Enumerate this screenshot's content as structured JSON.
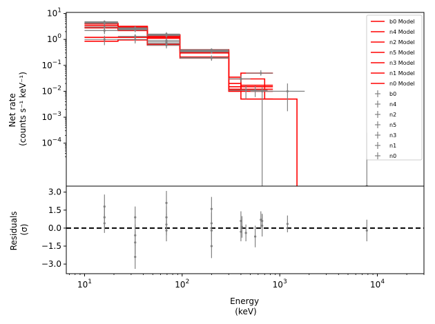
{
  "chart_data": [
    {
      "type": "line",
      "panel": "top",
      "ylabel_lines": [
        "Net rate",
        "(counts s⁻¹ keV⁻¹)"
      ],
      "yscale": "log",
      "xscale": "log",
      "xlim": [
        6.5,
        30000
      ],
      "ylim": [
        2.2e-06,
        11
      ],
      "y_ticks": [
        {
          "value": 0.0001,
          "mant": "10",
          "exp": "−4"
        },
        {
          "value": 0.001,
          "mant": "10",
          "exp": "−3"
        },
        {
          "value": 0.01,
          "mant": "10",
          "exp": "−2"
        },
        {
          "value": 0.1,
          "mant": "10",
          "exp": "−1"
        },
        {
          "value": 1,
          "mant": "10",
          "exp": "0"
        },
        {
          "value": 10,
          "mant": "10",
          "exp": "1"
        }
      ],
      "models": [
        {
          "name": "b0 Model",
          "edges": [
            10,
            22,
            44,
            95,
            300,
            700,
            1500,
            20000
          ],
          "values": [
            4.2,
            3.2,
            1.5,
            0.4,
            0.03,
            0.005,
            2e-06
          ]
        },
        {
          "name": "n4 Model",
          "edges": [
            10,
            22,
            44,
            95,
            300,
            400,
            850
          ],
          "values": [
            3.0,
            2.2,
            1.1,
            0.32,
            0.012,
            0.017
          ]
        },
        {
          "name": "n2 Model",
          "edges": [
            10,
            22,
            44,
            95,
            300,
            400,
            850
          ],
          "values": [
            3.5,
            2.7,
            1.2,
            0.36,
            0.015,
            0.012
          ]
        },
        {
          "name": "n5 Model",
          "edges": [
            10,
            22,
            44,
            95,
            300,
            400,
            850
          ],
          "values": [
            1.2,
            1.2,
            0.65,
            0.21,
            0.011,
            0.05
          ]
        },
        {
          "name": "n3 Model",
          "edges": [
            10,
            22,
            44,
            95,
            300,
            400,
            850
          ],
          "values": [
            2.8,
            2.4,
            1.3,
            0.3,
            0.02,
            0.015
          ]
        },
        {
          "name": "n1 Model",
          "edges": [
            10,
            22,
            44,
            95,
            300,
            400,
            850
          ],
          "values": [
            0.85,
            0.95,
            0.6,
            0.19,
            0.01,
            0.005
          ]
        },
        {
          "name": "n0 Model",
          "edges": [
            10,
            22,
            44,
            95,
            300,
            400,
            850
          ],
          "values": [
            4.0,
            3.0,
            1.4,
            0.38,
            0.035,
            0.01
          ]
        }
      ],
      "data_series": [
        {
          "name": "b0",
          "points": [
            {
              "x": 16,
              "xerr": [
                10,
                22
              ],
              "y": 4.8,
              "yerr": [
                4.3,
                5.4
              ]
            },
            {
              "x": 33,
              "xerr": [
                22,
                44
              ],
              "y": 2.6,
              "yerr": [
                2.2,
                3.1
              ]
            },
            {
              "x": 69,
              "xerr": [
                44,
                95
              ],
              "y": 0.9,
              "yerr": [
                0.7,
                1.1
              ]
            },
            {
              "x": 200,
              "xerr": [
                95,
                300
              ],
              "y": 0.38,
              "yerr": [
                0.33,
                0.43
              ]
            },
            {
              "x": 1200,
              "xerr": [
                800,
                1800
              ],
              "y": 0.01,
              "yerr": [
                0.0017,
                0.02
              ]
            },
            {
              "x": 7800,
              "xerr": [
                7500,
                8100
              ],
              "y": 2.2e-06,
              "yerr": [
                2.2e-06,
                0.00025
              ]
            }
          ]
        },
        {
          "name": "n4",
          "points": [
            {
              "x": 16,
              "xerr": [
                10,
                22
              ],
              "y": 2.2,
              "yerr": [
                1.8,
                2.6
              ]
            },
            {
              "x": 33,
              "xerr": [
                22,
                44
              ],
              "y": 2.3,
              "yerr": [
                1.9,
                2.7
              ]
            },
            {
              "x": 69,
              "xerr": [
                44,
                95
              ],
              "y": 1.6,
              "yerr": [
                1.3,
                1.9
              ]
            },
            {
              "x": 200,
              "xerr": [
                95,
                300
              ],
              "y": 0.36,
              "yerr": [
                0.31,
                0.41
              ]
            },
            {
              "x": 450,
              "xerr": [
                300,
                600
              ],
              "y": 0.011,
              "yerr": [
                0.005,
                0.017
              ]
            }
          ]
        },
        {
          "name": "n2",
          "points": [
            {
              "x": 16,
              "xerr": [
                10,
                22
              ],
              "y": 4.5,
              "yerr": [
                3.9,
                5.1
              ]
            },
            {
              "x": 33,
              "xerr": [
                22,
                44
              ],
              "y": 1.3,
              "yerr": [
                0.8,
                1.6
              ]
            },
            {
              "x": 69,
              "xerr": [
                44,
                95
              ],
              "y": 0.7,
              "yerr": [
                0.5,
                0.9
              ]
            },
            {
              "x": 200,
              "xerr": [
                95,
                300
              ],
              "y": 0.2,
              "yerr": [
                0.16,
                0.24
              ]
            },
            {
              "x": 560,
              "xerr": [
                400,
                750
              ],
              "y": 0.011,
              "yerr": [
                0.006,
                0.016
              ]
            }
          ]
        },
        {
          "name": "n5",
          "points": [
            {
              "x": 16,
              "xerr": [
                10,
                22
              ],
              "y": 1.0,
              "yerr": [
                0.6,
                1.4
              ]
            },
            {
              "x": 33,
              "xerr": [
                22,
                44
              ],
              "y": 1.0,
              "yerr": [
                0.7,
                1.3
              ]
            },
            {
              "x": 69,
              "xerr": [
                44,
                95
              ],
              "y": 0.6,
              "yerr": [
                0.45,
                0.75
              ]
            },
            {
              "x": 200,
              "xerr": [
                95,
                300
              ],
              "y": 0.19,
              "yerr": [
                0.15,
                0.23
              ]
            },
            {
              "x": 640,
              "xerr": [
                450,
                850
              ],
              "y": 0.05,
              "yerr": [
                0.04,
                0.065
              ]
            }
          ]
        },
        {
          "name": "n3",
          "points": [
            {
              "x": 16,
              "xerr": [
                10,
                22
              ],
              "y": 3.0,
              "yerr": [
                2.5,
                3.5
              ]
            },
            {
              "x": 33,
              "xerr": [
                22,
                44
              ],
              "y": 2.8,
              "yerr": [
                2.4,
                3.2
              ]
            },
            {
              "x": 69,
              "xerr": [
                44,
                95
              ],
              "y": 1.4,
              "yerr": [
                1.15,
                1.65
              ]
            },
            {
              "x": 200,
              "xerr": [
                95,
                300
              ],
              "y": 0.33,
              "yerr": [
                0.29,
                0.37
              ]
            },
            {
              "x": 400,
              "xerr": [
                300,
                500
              ],
              "y": 0.03,
              "yerr": [
                0.022,
                0.04
              ]
            }
          ]
        },
        {
          "name": "n1",
          "points": [
            {
              "x": 16,
              "xerr": [
                10,
                22
              ],
              "y": 2.2,
              "yerr": [
                1.6,
                2.8
              ]
            },
            {
              "x": 33,
              "xerr": [
                22,
                44
              ],
              "y": 2.4,
              "yerr": [
                2.0,
                2.8
              ]
            },
            {
              "x": 69,
              "xerr": [
                44,
                95
              ],
              "y": 0.8,
              "yerr": [
                0.6,
                1.0
              ]
            },
            {
              "x": 200,
              "xerr": [
                95,
                300
              ],
              "y": 0.4,
              "yerr": [
                0.35,
                0.45
              ]
            },
            {
              "x": 660,
              "xerr": [
                500,
                850
              ],
              "y": 0.01,
              "yerr": [
                2.2e-06,
                0.014
              ]
            }
          ]
        },
        {
          "name": "n0",
          "points": [
            {
              "x": 16,
              "xerr": [
                10,
                22
              ],
              "y": 4.2,
              "yerr": [
                3.6,
                4.8
              ]
            },
            {
              "x": 33,
              "xerr": [
                22,
                44
              ],
              "y": 2.6,
              "yerr": [
                2.2,
                3.0
              ]
            },
            {
              "x": 69,
              "xerr": [
                44,
                95
              ],
              "y": 1.5,
              "yerr": [
                1.25,
                1.75
              ]
            },
            {
              "x": 200,
              "xerr": [
                95,
                300
              ],
              "y": 0.35,
              "yerr": [
                0.3,
                0.4
              ]
            },
            {
              "x": 400,
              "xerr": [
                300,
                500
              ],
              "y": 0.03,
              "yerr": [
                0.024,
                0.036
              ]
            }
          ]
        }
      ],
      "legend_placement": "top-right",
      "model_color": "#ff0000",
      "data_color": "#808080"
    },
    {
      "type": "scatter",
      "panel": "bottom",
      "xlabel_lines": [
        "Energy",
        "(keV)"
      ],
      "ylabel_lines": [
        "Residuals",
        "(σ)"
      ],
      "xscale": "log",
      "xlim": [
        6.5,
        30000
      ],
      "ylim": [
        -3.8,
        3.5
      ],
      "y_ticks": [
        "−3.0",
        "−1.5",
        "0.0",
        "1.5",
        "3.0"
      ],
      "x_ticks": [
        {
          "value": 10,
          "mant": "10",
          "exp": "1"
        },
        {
          "value": 100,
          "mant": "10",
          "exp": "2"
        },
        {
          "value": 1000,
          "mant": "10",
          "exp": "3"
        },
        {
          "value": 10000,
          "mant": "10",
          "exp": "4"
        }
      ],
      "zero_line": {
        "value": 0,
        "style": "dashed",
        "color": "#000000"
      },
      "points": [
        {
          "x": 16,
          "y": 1.8,
          "err": 1.0
        },
        {
          "x": 16,
          "y": 0.9,
          "err": 0.9
        },
        {
          "x": 16,
          "y": 0.4,
          "err": 0.8
        },
        {
          "x": 33,
          "y": 0.9,
          "err": 0.9
        },
        {
          "x": 33,
          "y": -0.6,
          "err": 0.9
        },
        {
          "x": 33,
          "y": -1.2,
          "err": 1.0
        },
        {
          "x": 33,
          "y": -2.4,
          "err": 1.0
        },
        {
          "x": 69,
          "y": 2.1,
          "err": 1.0
        },
        {
          "x": 69,
          "y": 0.9,
          "err": 0.9
        },
        {
          "x": 69,
          "y": 0.3,
          "err": 0.9
        },
        {
          "x": 69,
          "y": -0.2,
          "err": 0.9
        },
        {
          "x": 200,
          "y": 1.6,
          "err": 1.0
        },
        {
          "x": 200,
          "y": 0.4,
          "err": 0.9
        },
        {
          "x": 200,
          "y": -0.2,
          "err": 0.8
        },
        {
          "x": 200,
          "y": -1.5,
          "err": 1.0
        },
        {
          "x": 400,
          "y": 0.6,
          "err": 0.8
        },
        {
          "x": 400,
          "y": -0.3,
          "err": 0.8
        },
        {
          "x": 410,
          "y": 0.1,
          "err": 0.9
        },
        {
          "x": 450,
          "y": -0.4,
          "err": 0.7
        },
        {
          "x": 560,
          "y": -0.7,
          "err": 0.9
        },
        {
          "x": 640,
          "y": 0.7,
          "err": 0.7
        },
        {
          "x": 660,
          "y": 0.2,
          "err": 0.9
        },
        {
          "x": 660,
          "y": 0.6,
          "err": 0.6
        },
        {
          "x": 1200,
          "y": 0.35,
          "err": 0.7
        },
        {
          "x": 7800,
          "y": -0.2,
          "err": 0.9
        }
      ],
      "color": "#808080"
    }
  ]
}
